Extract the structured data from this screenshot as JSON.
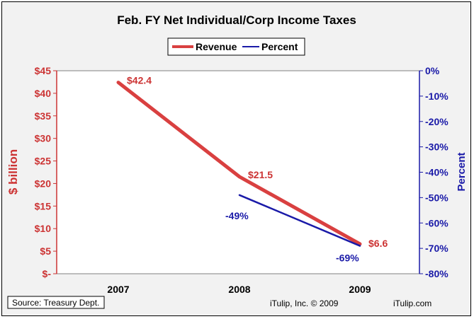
{
  "chart_data": {
    "type": "line",
    "title": "Feb. FY Net Individual/Corp Income Taxes",
    "categories": [
      "2007",
      "2008",
      "2009"
    ],
    "y_left": {
      "label": "$ billion",
      "ylim": [
        0,
        45
      ],
      "ticks": [
        {
          "value": 0,
          "label": "$-"
        },
        {
          "value": 5,
          "label": "$5"
        },
        {
          "value": 10,
          "label": "$10"
        },
        {
          "value": 15,
          "label": "$15"
        },
        {
          "value": 20,
          "label": "$20"
        },
        {
          "value": 25,
          "label": "$25"
        },
        {
          "value": 30,
          "label": "$30"
        },
        {
          "value": 35,
          "label": "$35"
        },
        {
          "value": 40,
          "label": "$40"
        },
        {
          "value": 45,
          "label": "$45"
        }
      ]
    },
    "y_right": {
      "label": "Percent",
      "ylim": [
        -80,
        0
      ],
      "ticks": [
        {
          "value": 0,
          "label": "0%"
        },
        {
          "value": -10,
          "label": "-10%"
        },
        {
          "value": -20,
          "label": "-20%"
        },
        {
          "value": -30,
          "label": "-30%"
        },
        {
          "value": -40,
          "label": "-40%"
        },
        {
          "value": -50,
          "label": "-50%"
        },
        {
          "value": -60,
          "label": "-60%"
        },
        {
          "value": -70,
          "label": "-70%"
        },
        {
          "value": -80,
          "label": "-80%"
        }
      ]
    },
    "series": [
      {
        "name": "Revenue",
        "axis": "left",
        "color": "#d94040",
        "values": [
          42.4,
          21.5,
          6.6
        ],
        "labels": [
          "$42.4",
          "$21.5",
          "$6.6"
        ]
      },
      {
        "name": "Percent",
        "axis": "right",
        "color": "#1a1aa8",
        "values": [
          null,
          -49,
          -69
        ],
        "labels": [
          "",
          "-49%",
          "-69%"
        ]
      }
    ],
    "legend_position": "top-center",
    "grid": false
  },
  "footer": {
    "source": "Source: Treasury Dept.",
    "copyright": "iTulip, Inc. © 2009",
    "site": "iTulip.com"
  },
  "colors": {
    "background": "#f2f2f2",
    "plot_background": "#ffffff",
    "left_axis": "#cc3333",
    "right_axis": "#1a1aa8"
  }
}
